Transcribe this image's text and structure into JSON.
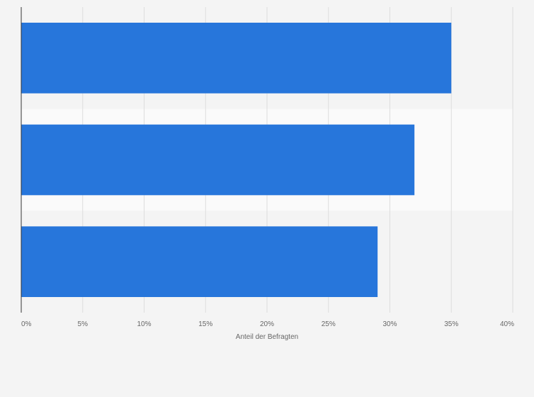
{
  "chart_data": {
    "type": "bar",
    "orientation": "horizontal",
    "categories": [
      "",
      "",
      ""
    ],
    "values": [
      35,
      32,
      29
    ],
    "xlabel": "Anteil der Befragten",
    "ylabel": "",
    "xlim": [
      0,
      40
    ],
    "xticks": [
      0,
      5,
      10,
      15,
      20,
      25,
      30,
      35,
      40
    ],
    "xtick_labels": [
      "0%",
      "5%",
      "10%",
      "15%",
      "20%",
      "25%",
      "30%",
      "35%",
      "40%"
    ],
    "grid": true,
    "legend": "none",
    "colors": {
      "bar": "#2776db",
      "background": "#f4f4f4",
      "band_alt": "#fafafa",
      "grid": "#dddddd",
      "axis": "#333333",
      "text": "#666666"
    }
  }
}
